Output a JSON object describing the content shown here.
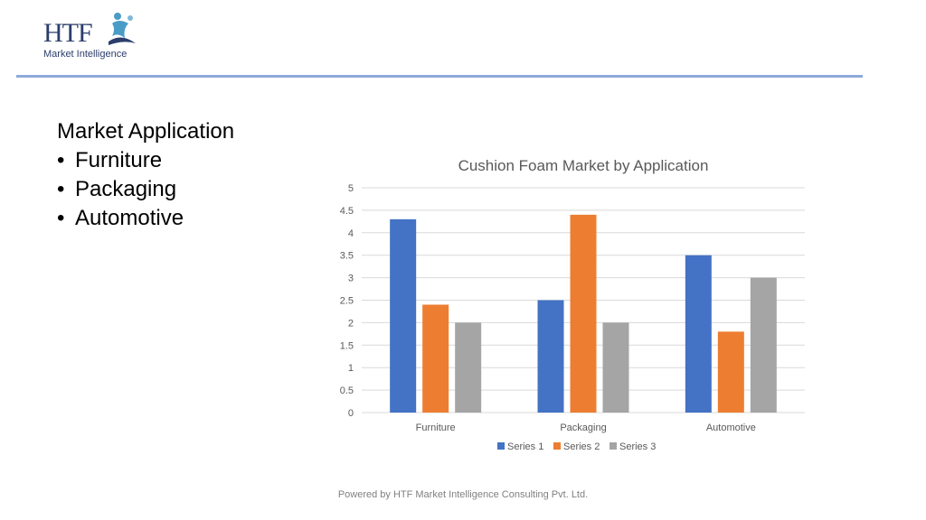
{
  "logo": {
    "letters": "HTF",
    "subtitle": "Market Intelligence"
  },
  "content": {
    "heading": "Market Application",
    "bullets": [
      "Furniture",
      "Packaging",
      "Automotive"
    ]
  },
  "chart_data": {
    "type": "bar",
    "title": "Cushion Foam Market by Application",
    "categories": [
      "Furniture",
      "Packaging",
      "Automotive"
    ],
    "series": [
      {
        "name": "Series 1",
        "values": [
          4.3,
          2.5,
          3.5
        ],
        "color": "#4472c4"
      },
      {
        "name": "Series 2",
        "values": [
          2.4,
          4.4,
          1.8
        ],
        "color": "#ed7d31"
      },
      {
        "name": "Series 3",
        "values": [
          2.0,
          2.0,
          3.0
        ],
        "color": "#a5a5a5"
      }
    ],
    "y_ticks": [
      "0",
      "0.5",
      "1",
      "1.5",
      "2",
      "2.5",
      "3",
      "3.5",
      "4",
      "4.5",
      "5"
    ],
    "ylim": [
      0,
      5
    ],
    "grid": true,
    "legend": "bottom",
    "xlabel": "",
    "ylabel": ""
  },
  "footer": {
    "text": "Powered by HTF Market Intelligence Consulting Pvt. Ltd."
  },
  "colors": {
    "divider": "#8eaadb",
    "logo_text": "#2b3d6b",
    "logo_accent": "#4a9cc7"
  }
}
